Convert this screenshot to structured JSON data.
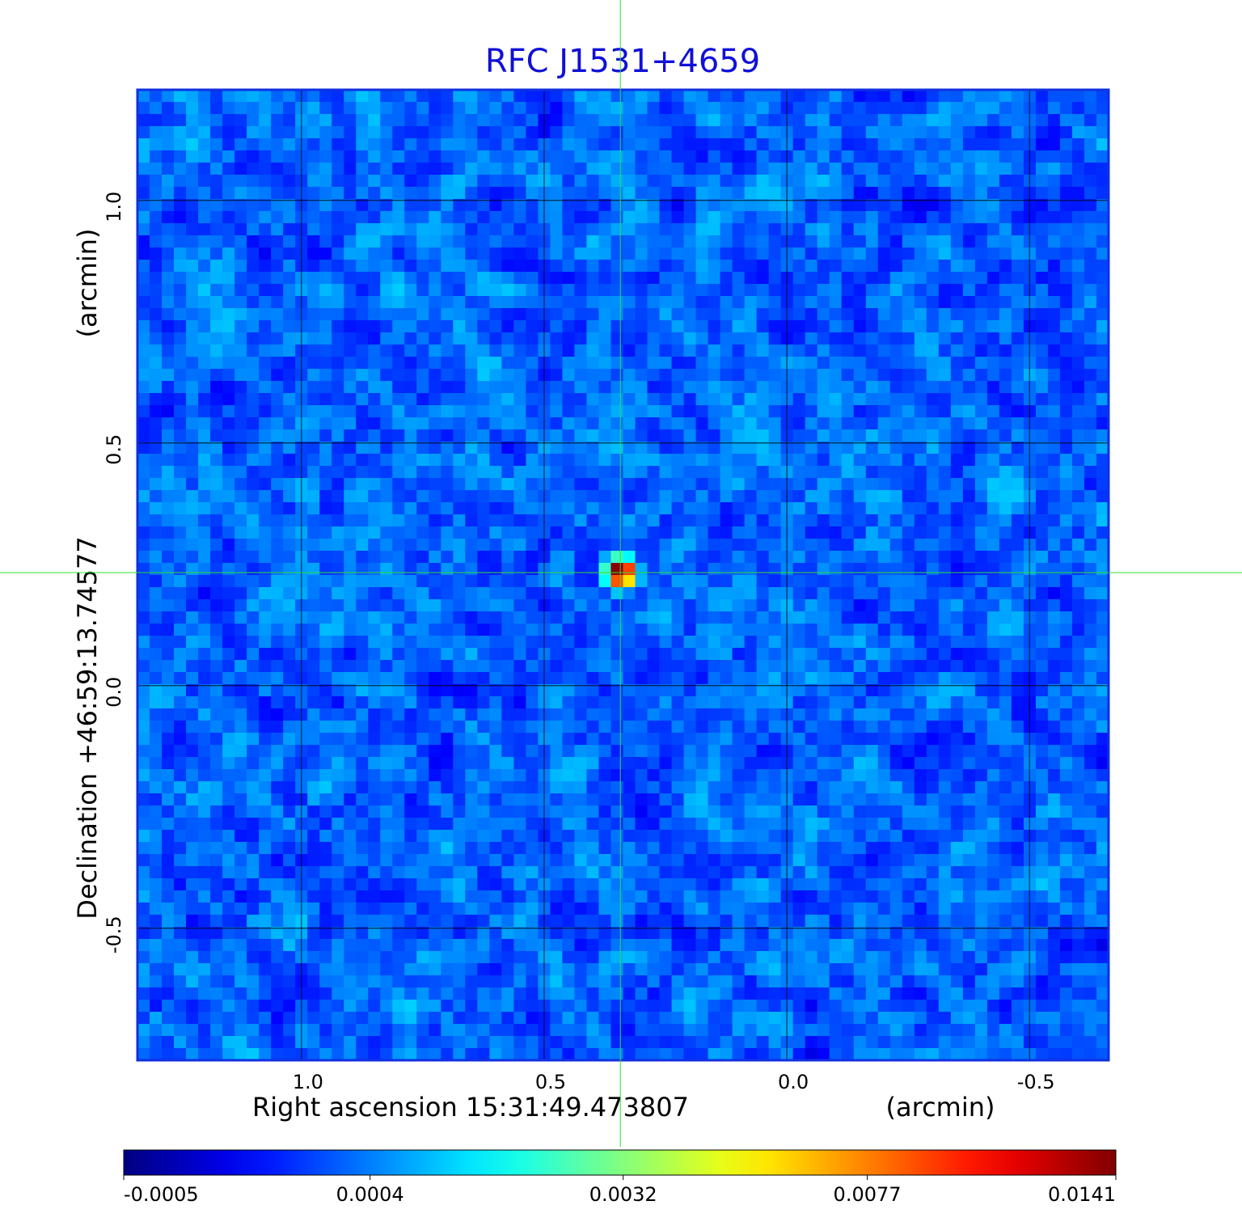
{
  "chart_data": {
    "type": "heatmap",
    "title": "RFC J1531+4659",
    "title_color": "#1010d8",
    "x_label": "Right ascension  15:31:49.473807",
    "x_unit": "(arcmin)",
    "y_label": "Declination  +46:59:13.74577",
    "y_unit": "(arcmin)",
    "xlim": [
      1.338,
      -0.663
    ],
    "ylim": [
      -0.772,
      1.228
    ],
    "xticks": [
      {
        "value": 1,
        "label": "1.0"
      },
      {
        "value": 0.5,
        "label": "0.5"
      },
      {
        "value": 0,
        "label": "0.0"
      },
      -0.5
    ],
    "yticks": [
      {
        "value": 1,
        "label": "1.0"
      },
      {
        "value": 0.5,
        "label": "0.5"
      },
      {
        "value": 0,
        "label": "0.0"
      },
      -0.5
    ],
    "grid": true,
    "colormap": "jet",
    "colorbar_scale": "sqrt",
    "clim": [
      -0.0005,
      0.0141
    ],
    "colorbar_ticks": [
      -0.0005,
      0.0004,
      0.0032,
      0.0077,
      0.0141
    ],
    "crosshair": {
      "x": 0.343,
      "y": 0.233,
      "color": "#33dd33"
    },
    "frame_color": "#1030e0"
  }
}
